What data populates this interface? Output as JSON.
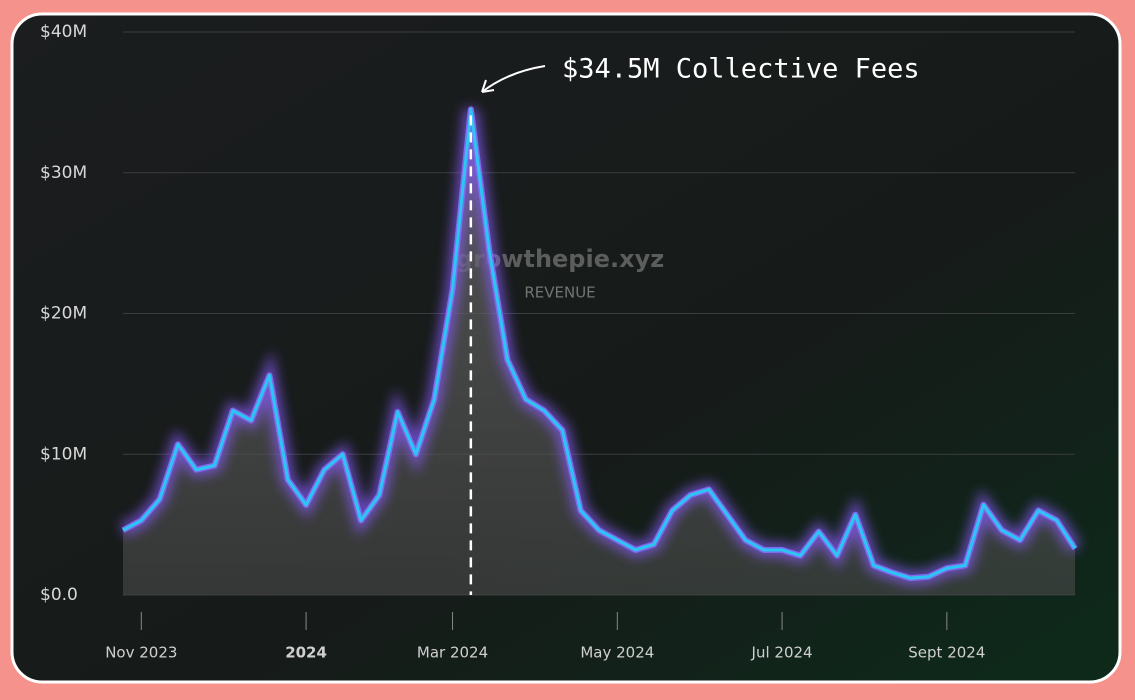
{
  "chart_data": {
    "type": "area",
    "annotation": "$34.5M Collective Fees",
    "watermark": "growthepie.xyz",
    "subtitle": "REVENUE",
    "categories": [
      null,
      "Nov 2023",
      null,
      null,
      null,
      null,
      null,
      null,
      null,
      null,
      "2024",
      null,
      null,
      null,
      null,
      null,
      null,
      null,
      "Mar 2024",
      null,
      null,
      null,
      null,
      null,
      null,
      null,
      null,
      "May 2024",
      null,
      null,
      null,
      null,
      null,
      null,
      null,
      null,
      "Jul 2024",
      null,
      null,
      null,
      null,
      null,
      null,
      null,
      null,
      "Sept 2024",
      null,
      null,
      null,
      null,
      null,
      null,
      null
    ],
    "values": [
      4.6,
      5.3,
      6.8,
      10.7,
      8.9,
      9.2,
      13.1,
      12.4,
      15.6,
      8.2,
      6.4,
      8.9,
      10.0,
      5.3,
      7.1,
      13.0,
      10.0,
      13.9,
      21.7,
      34.5,
      24.5,
      16.7,
      13.9,
      13.1,
      11.7,
      6.0,
      4.6,
      3.9,
      3.2,
      3.6,
      6.0,
      7.1,
      7.5,
      5.7,
      3.9,
      3.2,
      3.2,
      2.8,
      4.5,
      2.8,
      5.7,
      2.1,
      1.6,
      1.2,
      1.3,
      1.9,
      2.1,
      6.4,
      4.6,
      3.9,
      6.0,
      5.3,
      3.3
    ],
    "color": "#2cc6f2",
    "ylim": [
      0,
      40
    ],
    "yticks": [
      {
        "value": 0,
        "label": "$0.0"
      },
      {
        "value": 10,
        "label": "$10M"
      },
      {
        "value": 20,
        "label": "$20M"
      },
      {
        "value": 30,
        "label": "$30M"
      },
      {
        "value": 40,
        "label": "$40M"
      }
    ],
    "grid": true
  }
}
